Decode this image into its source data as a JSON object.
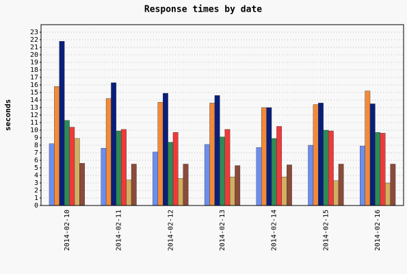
{
  "chart_data": {
    "type": "bar",
    "title": "Response times by date",
    "y_label": "seconds",
    "categories": [
      "2014-02-10",
      "2014-02-11",
      "2014-02-12",
      "2014-02-13",
      "2014-02-14",
      "2014-02-15",
      "2014-02-16"
    ],
    "series": [
      {
        "color": "#6b8ff0",
        "values": [
          8.2,
          7.6,
          7.1,
          8.1,
          7.7,
          8.0,
          7.9
        ]
      },
      {
        "color": "#f28a3a",
        "values": [
          15.8,
          14.2,
          13.7,
          13.6,
          13.0,
          13.4,
          15.2
        ]
      },
      {
        "color": "#0a1f7a",
        "values": [
          21.8,
          16.3,
          14.9,
          14.6,
          13.0,
          13.6,
          13.5
        ]
      },
      {
        "color": "#2e8b57",
        "values": [
          11.3,
          9.9,
          8.4,
          9.1,
          8.9,
          10.0,
          9.7
        ]
      },
      {
        "color": "#f03a3a",
        "values": [
          10.4,
          10.1,
          9.7,
          10.1,
          10.5,
          9.9,
          9.6
        ]
      },
      {
        "color": "#d2b060",
        "values": [
          8.9,
          3.4,
          3.6,
          3.8,
          3.8,
          3.3,
          3.0
        ]
      },
      {
        "color": "#8b4a3a",
        "values": [
          5.6,
          5.5,
          5.5,
          5.3,
          5.4,
          5.5,
          5.5
        ]
      }
    ],
    "ylim": [
      0,
      24
    ],
    "yticks": [
      0,
      1,
      2,
      3,
      4,
      5,
      6,
      7,
      8,
      9,
      10,
      11,
      12,
      13,
      14,
      15,
      16,
      17,
      18,
      19,
      20,
      21,
      22,
      23
    ],
    "grid": true
  }
}
